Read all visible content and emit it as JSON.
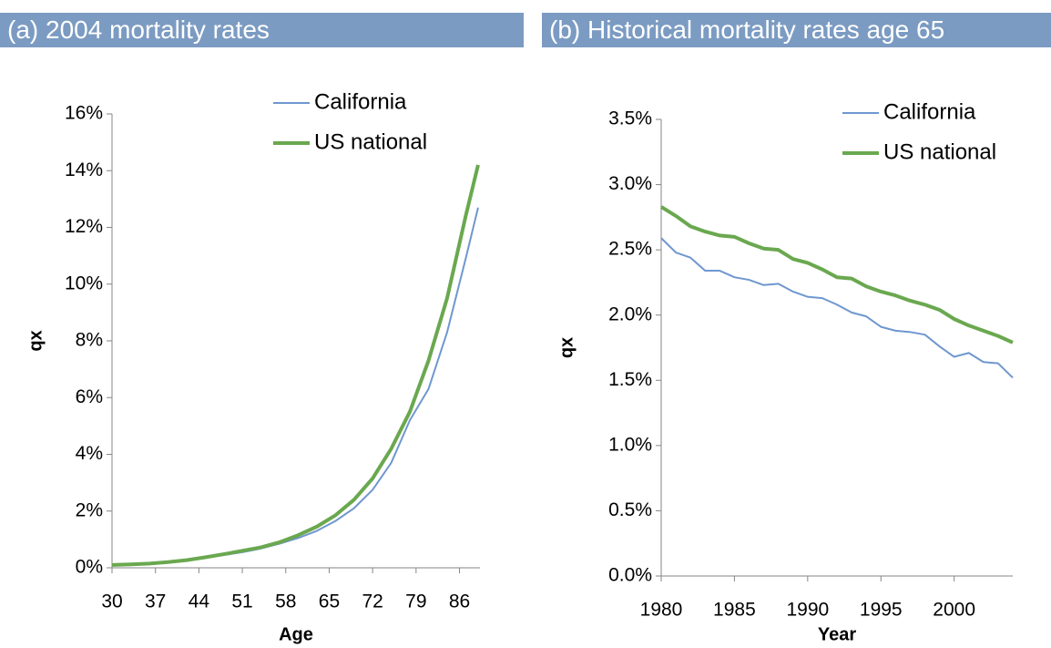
{
  "chart_data": [
    {
      "type": "line",
      "title": "(a) 2004 mortality rates",
      "x_label": "Age",
      "y_label": "qx",
      "x": [
        30,
        33,
        36,
        39,
        42,
        45,
        48,
        51,
        54,
        57,
        60,
        63,
        66,
        69,
        72,
        75,
        78,
        81,
        84,
        87,
        89
      ],
      "series": [
        {
          "name": "California",
          "color": "#6f97cf",
          "values": [
            0.1,
            0.11,
            0.14,
            0.19,
            0.25,
            0.35,
            0.45,
            0.55,
            0.68,
            0.85,
            1.05,
            1.3,
            1.65,
            2.1,
            2.75,
            3.7,
            5.2,
            6.3,
            8.3,
            10.9,
            12.7
          ]
        },
        {
          "name": "US national",
          "color": "#6aa84f",
          "values": [
            0.1,
            0.12,
            0.15,
            0.2,
            0.27,
            0.37,
            0.48,
            0.6,
            0.72,
            0.9,
            1.15,
            1.45,
            1.85,
            2.4,
            3.15,
            4.2,
            5.5,
            7.3,
            9.5,
            12.4,
            14.2
          ]
        }
      ],
      "xlim": [
        30,
        89.3
      ],
      "xticks": [
        30,
        37,
        44,
        51,
        58,
        65,
        72,
        79,
        86
      ],
      "ylim": [
        0,
        16
      ],
      "yticks": [
        {
          "value": 0,
          "label": "0%"
        },
        {
          "value": 2,
          "label": "2%"
        },
        {
          "value": 4,
          "label": "4%"
        },
        {
          "value": 6,
          "label": "6%"
        },
        {
          "value": 8,
          "label": "8%"
        },
        {
          "value": 10,
          "label": "10%"
        },
        {
          "value": 12,
          "label": "12%"
        },
        {
          "value": 14,
          "label": "14%"
        },
        {
          "value": 16,
          "label": "16%"
        }
      ]
    },
    {
      "type": "line",
      "title": "(b) Historical mortality rates age 65",
      "x_label": "Year",
      "y_label": "qx",
      "x": [
        1980,
        1981,
        1982,
        1983,
        1984,
        1985,
        1986,
        1987,
        1988,
        1989,
        1990,
        1991,
        1992,
        1993,
        1994,
        1995,
        1996,
        1997,
        1998,
        1999,
        2000,
        2001,
        2002,
        2003,
        2004
      ],
      "series": [
        {
          "name": "California",
          "color": "#6f97cf",
          "values": [
            2.59,
            2.48,
            2.44,
            2.34,
            2.34,
            2.29,
            2.27,
            2.23,
            2.24,
            2.18,
            2.14,
            2.13,
            2.08,
            2.02,
            1.99,
            1.91,
            1.88,
            1.87,
            1.85,
            1.76,
            1.68,
            1.71,
            1.64,
            1.63,
            1.52
          ]
        },
        {
          "name": "US national",
          "color": "#6aa84f",
          "values": [
            2.83,
            2.76,
            2.68,
            2.64,
            2.61,
            2.6,
            2.55,
            2.51,
            2.5,
            2.43,
            2.4,
            2.35,
            2.29,
            2.28,
            2.22,
            2.18,
            2.15,
            2.11,
            2.08,
            2.04,
            1.97,
            1.92,
            1.88,
            1.84,
            1.79
          ]
        }
      ],
      "xlim": [
        1980,
        2004
      ],
      "xticks": [
        1980,
        1985,
        1990,
        1995,
        2000
      ],
      "ylim": [
        0,
        3.5
      ],
      "yticks": [
        {
          "value": 0,
          "label": "0.0%"
        },
        {
          "value": 0.5,
          "label": "0.5%"
        },
        {
          "value": 1,
          "label": "1.0%"
        },
        {
          "value": 1.5,
          "label": "1.5%"
        },
        {
          "value": 2,
          "label": "2.0%"
        },
        {
          "value": 2.5,
          "label": "2.5%"
        },
        {
          "value": 3,
          "label": "3.0%"
        },
        {
          "value": 3.5,
          "label": "3.5%"
        }
      ]
    }
  ]
}
